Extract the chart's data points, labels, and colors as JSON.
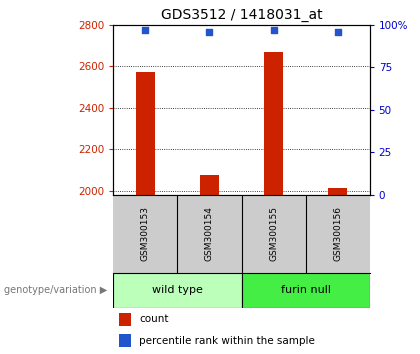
{
  "title": "GDS3512 / 1418031_at",
  "samples": [
    "GSM300153",
    "GSM300154",
    "GSM300155",
    "GSM300156"
  ],
  "count_values": [
    2570,
    2075,
    2670,
    2010
  ],
  "percentile_values": [
    97,
    96,
    97,
    96
  ],
  "ylim_left": [
    1980,
    2800
  ],
  "ylim_right": [
    0,
    100
  ],
  "yticks_left": [
    2000,
    2200,
    2400,
    2600,
    2800
  ],
  "yticks_right": [
    0,
    25,
    50,
    75,
    100
  ],
  "ytick_labels_right": [
    "0",
    "25",
    "50",
    "75",
    "100%"
  ],
  "bar_color": "#cc2200",
  "dot_color": "#2255cc",
  "groups": [
    {
      "label": "wild type",
      "indices": [
        0,
        1
      ],
      "color": "#bbffbb"
    },
    {
      "label": "furin null",
      "indices": [
        2,
        3
      ],
      "color": "#44ee44"
    }
  ],
  "group_label": "genotype/variation",
  "legend_count_label": "count",
  "legend_percentile_label": "percentile rank within the sample",
  "background_color": "#ffffff",
  "sample_bg_color": "#cccccc",
  "left_label_color": "#cc2200",
  "right_label_color": "#0000cc"
}
